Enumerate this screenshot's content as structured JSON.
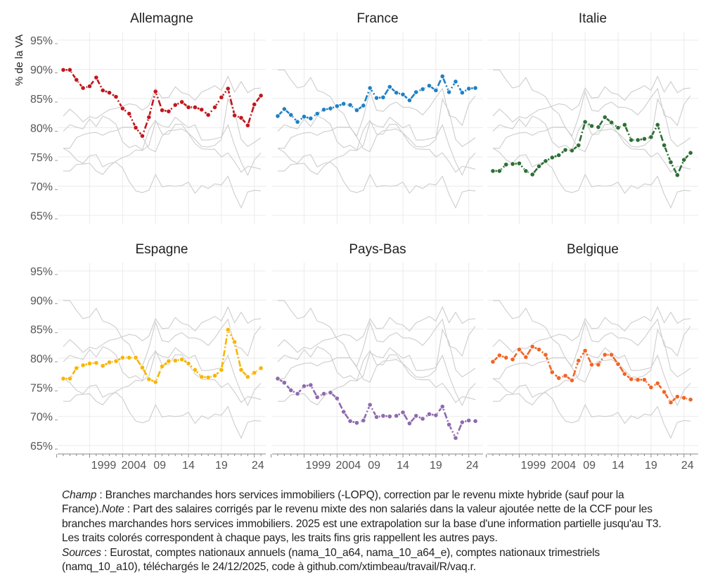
{
  "chart_data": {
    "type": "line",
    "ylabel": "% de la VA",
    "ylim": [
      65,
      95
    ],
    "yticks": [
      "65%",
      "70%",
      "75%",
      "80%",
      "85%",
      "90%",
      "95%"
    ],
    "xlim": [
      1995,
      2025
    ],
    "xticks": [
      {
        "year": 1999,
        "label": "1999"
      },
      {
        "year": 2004,
        "label": "2004"
      },
      {
        "year": 2009,
        "label": "09"
      },
      {
        "year": 2014,
        "label": "14"
      },
      {
        "year": 2019,
        "label": "19"
      },
      {
        "year": 2024,
        "label": "24"
      }
    ],
    "grid": true,
    "x": [
      1995,
      1996,
      1997,
      1998,
      1999,
      2000,
      2001,
      2002,
      2003,
      2004,
      2005,
      2006,
      2007,
      2008,
      2009,
      2010,
      2011,
      2012,
      2013,
      2014,
      2015,
      2016,
      2017,
      2018,
      2019,
      2020,
      2021,
      2022,
      2023,
      2024,
      2025
    ],
    "series": [
      {
        "name": "Allemagne",
        "color": "#c0171d",
        "values": [
          89.9,
          89.9,
          88.2,
          86.8,
          87.1,
          88.6,
          86.4,
          86.0,
          85.3,
          83.3,
          82.4,
          80.0,
          78.6,
          81.8,
          86.2,
          83.0,
          82.8,
          83.9,
          84.4,
          83.5,
          83.5,
          83.1,
          82.2,
          83.5,
          85.2,
          86.7,
          82.1,
          81.7,
          80.4,
          84.0,
          85.5
        ]
      },
      {
        "name": "France",
        "color": "#1f80c4",
        "values": [
          82.0,
          83.2,
          82.2,
          81.0,
          81.9,
          81.6,
          82.4,
          83.1,
          83.3,
          83.7,
          84.1,
          83.9,
          83.0,
          83.8,
          86.8,
          85.1,
          85.2,
          87.0,
          86.0,
          85.7,
          84.7,
          86.1,
          86.6,
          87.2,
          86.4,
          88.8,
          86.1,
          87.9,
          86.0,
          86.7,
          86.8
        ]
      },
      {
        "name": "Italie",
        "color": "#2e6f35",
        "values": [
          72.6,
          72.6,
          73.7,
          73.8,
          73.9,
          72.6,
          72.0,
          73.4,
          74.3,
          74.9,
          75.3,
          76.2,
          76.1,
          77.0,
          81.0,
          80.3,
          80.1,
          81.8,
          80.9,
          80.0,
          80.5,
          77.9,
          77.9,
          78.1,
          78.4,
          80.5,
          77.0,
          74.1,
          71.9,
          74.5,
          75.7
        ]
      },
      {
        "name": "Espagne",
        "color": "#f7b500",
        "values": [
          76.5,
          76.5,
          78.3,
          78.8,
          79.1,
          79.2,
          78.7,
          79.3,
          79.5,
          80.1,
          80.1,
          80.1,
          78.4,
          76.4,
          75.9,
          78.6,
          79.5,
          79.6,
          79.8,
          79.1,
          78.0,
          76.8,
          76.7,
          77.0,
          78.0,
          84.9,
          82.8,
          78.0,
          76.8,
          77.5,
          78.3
        ]
      },
      {
        "name": "Pays-Bas",
        "color": "#8e6aae",
        "values": [
          76.5,
          75.8,
          74.5,
          73.9,
          75.2,
          75.4,
          73.3,
          73.9,
          74.1,
          73.1,
          70.8,
          69.2,
          68.9,
          69.3,
          72.0,
          69.9,
          70.1,
          70.0,
          70.1,
          70.7,
          68.8,
          70.1,
          69.6,
          70.4,
          70.2,
          71.7,
          68.6,
          66.3,
          69.0,
          69.3,
          69.2
        ]
      },
      {
        "name": "Belgique",
        "color": "#ef6526",
        "values": [
          79.4,
          80.5,
          80.1,
          79.8,
          81.5,
          80.2,
          82.0,
          81.5,
          80.6,
          77.6,
          76.6,
          77.0,
          76.2,
          79.6,
          81.3,
          78.9,
          78.9,
          80.6,
          80.6,
          79.0,
          77.3,
          76.4,
          76.3,
          76.3,
          75.0,
          75.7,
          74.2,
          72.4,
          73.4,
          73.2,
          72.9
        ]
      }
    ]
  },
  "footer": {
    "champ_label": "Champ",
    "champ_text": " : Branches marchandes hors services immobiliers (-LOPQ), correction par le revenu mixte hybride (sauf pour la France).",
    "note_label": "Note",
    "note_text": " : Part des salaires corrigés par le revenu mixte des non salariés dans la valeur ajoutée nette de la CCF pour les branches marchandes hors services immobiliers. 2025 est une extrapolation sur la base d'une information partielle jusqu'au T3. Les traits colorés correspondent à chaque pays, les traits fins gris rappellent les autres pays.",
    "sources_label": "Sources",
    "sources_text": " : Eurostat, comptes nationaux annuels (nama_10_a64, nama_10_a64_e), comptes nationaux trimestriels (namq_10_a10), téléchargés le 24/12/2025, code à github.com/xtimbeau/travail/R/vaq.r."
  }
}
